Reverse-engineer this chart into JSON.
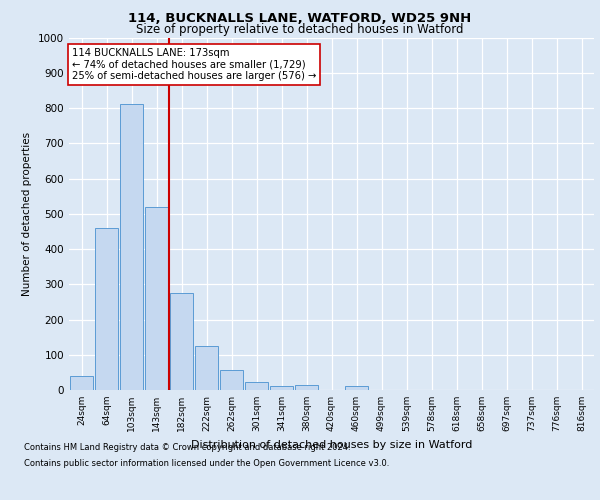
{
  "title1": "114, BUCKNALLS LANE, WATFORD, WD25 9NH",
  "title2": "Size of property relative to detached houses in Watford",
  "xlabel": "Distribution of detached houses by size in Watford",
  "ylabel": "Number of detached properties",
  "footnote1": "Contains HM Land Registry data © Crown copyright and database right 2024.",
  "footnote2": "Contains public sector information licensed under the Open Government Licence v3.0.",
  "bar_labels": [
    "24sqm",
    "64sqm",
    "103sqm",
    "143sqm",
    "182sqm",
    "222sqm",
    "262sqm",
    "301sqm",
    "341sqm",
    "380sqm",
    "420sqm",
    "460sqm",
    "499sqm",
    "539sqm",
    "578sqm",
    "618sqm",
    "658sqm",
    "697sqm",
    "737sqm",
    "776sqm",
    "816sqm"
  ],
  "bar_values": [
    40,
    460,
    810,
    520,
    275,
    125,
    58,
    22,
    12,
    13,
    0,
    10,
    0,
    0,
    0,
    0,
    0,
    0,
    0,
    0,
    0
  ],
  "bar_color": "#c5d8f0",
  "bar_edge_color": "#5b9bd5",
  "vline_idx": 4,
  "vline_color": "#cc0000",
  "ylim": [
    0,
    1000
  ],
  "yticks": [
    0,
    100,
    200,
    300,
    400,
    500,
    600,
    700,
    800,
    900,
    1000
  ],
  "annotation_text": "114 BUCKNALLS LANE: 173sqm\n← 74% of detached houses are smaller (1,729)\n25% of semi-detached houses are larger (576) →",
  "annotation_box_color": "#ffffff",
  "annotation_box_edge": "#cc0000",
  "bg_color": "#dce8f5",
  "fig_color": "#dce8f5"
}
